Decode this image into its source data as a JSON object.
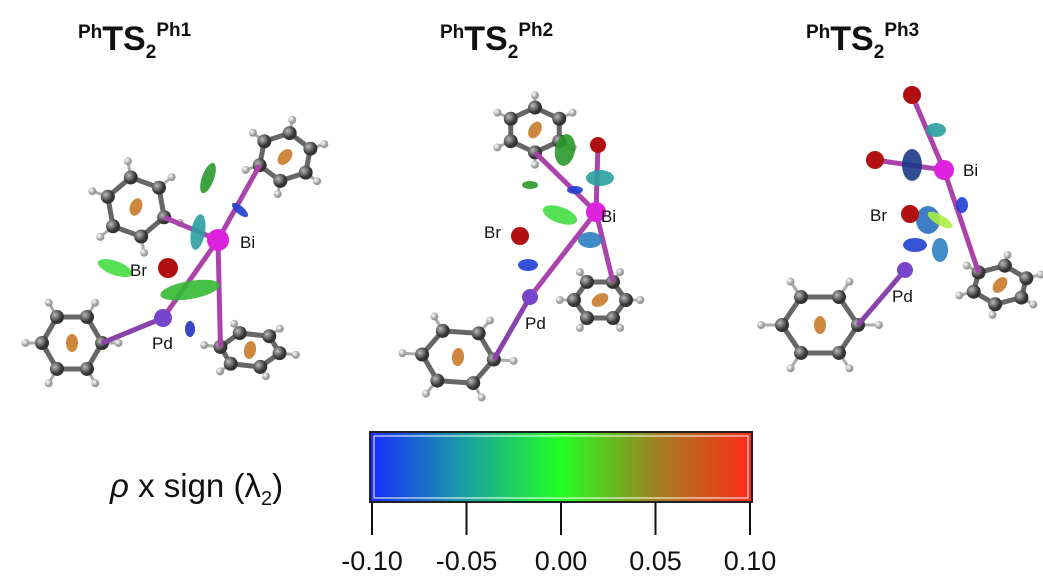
{
  "panels": [
    {
      "title": {
        "prefix": "Ph",
        "main": "TS",
        "sub": "2",
        "sup": "Ph1"
      },
      "atoms": {
        "bi": "Bi",
        "br": "Br",
        "pd": "Pd"
      }
    },
    {
      "title": {
        "prefix": "Ph",
        "main": "TS",
        "sub": "2",
        "sup": "Ph2"
      },
      "atoms": {
        "bi": "Bi",
        "br": "Br",
        "pd": "Pd"
      }
    },
    {
      "title": {
        "prefix": "Ph",
        "main": "TS",
        "sub": "2",
        "sup": "Ph3"
      },
      "atoms": {
        "bi": "Bi",
        "br": "Br",
        "pd": "Pd"
      }
    }
  ],
  "colorbar": {
    "label": {
      "symbol": "ρ",
      "text": " x sign (λ",
      "sub": "2",
      "close": ")"
    },
    "range": [
      -0.1,
      0.1
    ],
    "ticks": [
      {
        "value": -0.1,
        "label": "-0.10"
      },
      {
        "value": -0.05,
        "label": "-0.05"
      },
      {
        "value": 0,
        "label": "0.00"
      },
      {
        "value": 0.05,
        "label": "0.05"
      },
      {
        "value": 0.1,
        "label": "0.10"
      }
    ]
  }
}
